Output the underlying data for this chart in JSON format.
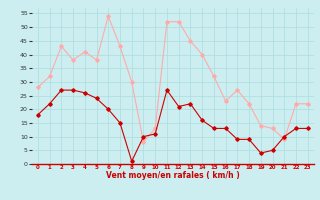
{
  "x": [
    0,
    1,
    2,
    3,
    4,
    5,
    6,
    7,
    8,
    9,
    10,
    11,
    12,
    13,
    14,
    15,
    16,
    17,
    18,
    19,
    20,
    21,
    22,
    23
  ],
  "mean_wind": [
    18,
    22,
    27,
    27,
    26,
    24,
    20,
    15,
    1,
    10,
    11,
    27,
    21,
    22,
    16,
    13,
    13,
    9,
    9,
    4,
    5,
    10,
    13,
    13
  ],
  "gust_wind": [
    28,
    32,
    43,
    38,
    41,
    38,
    54,
    43,
    30,
    8,
    13,
    52,
    52,
    45,
    40,
    32,
    23,
    27,
    22,
    14,
    13,
    9,
    22,
    22
  ],
  "bg_color": "#cceef0",
  "grid_color": "#aadddd",
  "mean_color": "#cc0000",
  "gust_color": "#ffaaaa",
  "xlabel": "Vent moyen/en rafales ( km/h )",
  "xlabel_color": "#cc0000",
  "yticks": [
    0,
    5,
    10,
    15,
    20,
    25,
    30,
    35,
    40,
    45,
    50,
    55
  ],
  "ylim": [
    0,
    57
  ],
  "xlim": [
    -0.5,
    23.5
  ]
}
